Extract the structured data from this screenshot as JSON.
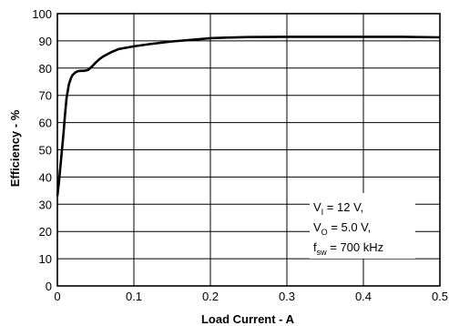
{
  "chart_data": {
    "type": "line",
    "xlabel": "Load Current - A",
    "ylabel": "Efficiency - %",
    "xlim": [
      0,
      0.5
    ],
    "ylim": [
      0,
      100
    ],
    "x_ticks": [
      0,
      0.1,
      0.2,
      0.3,
      0.4,
      0.5
    ],
    "x_tick_labels": [
      "0",
      "0.1",
      "0.2",
      "0.3",
      "0.4",
      "0.5"
    ],
    "y_ticks": [
      0,
      10,
      20,
      30,
      40,
      50,
      60,
      70,
      80,
      90,
      100
    ],
    "y_tick_labels": [
      "0",
      "10",
      "20",
      "30",
      "40",
      "50",
      "60",
      "70",
      "80",
      "90",
      "100"
    ],
    "grid": true,
    "series": [
      {
        "x": [
          0,
          0.002,
          0.005,
          0.008,
          0.01,
          0.012,
          0.015,
          0.018,
          0.02,
          0.023,
          0.026,
          0.03,
          0.035,
          0.04,
          0.045,
          0.05,
          0.055,
          0.06,
          0.07,
          0.08,
          0.09,
          0.1,
          0.12,
          0.15,
          0.18,
          0.2,
          0.22,
          0.25,
          0.3,
          0.35,
          0.4,
          0.45,
          0.5
        ],
        "y": [
          33,
          38,
          47,
          56,
          63,
          69,
          74,
          76.5,
          77.5,
          78.3,
          78.8,
          79,
          79,
          79.3,
          80.5,
          82,
          83.3,
          84.3,
          85.8,
          87,
          87.5,
          88,
          88.8,
          89.8,
          90.5,
          91,
          91.2,
          91.4,
          91.5,
          91.5,
          91.5,
          91.5,
          91.3
        ]
      }
    ],
    "annotation": {
      "line1": {
        "main": "V",
        "sub": "I",
        "rest": " = 12 V,"
      },
      "line2": {
        "main": "V",
        "sub": "O",
        "rest": " = 5.0 V,"
      },
      "line3": {
        "main": "f",
        "sub": "sw",
        "rest": " = 700 kHz"
      }
    }
  }
}
